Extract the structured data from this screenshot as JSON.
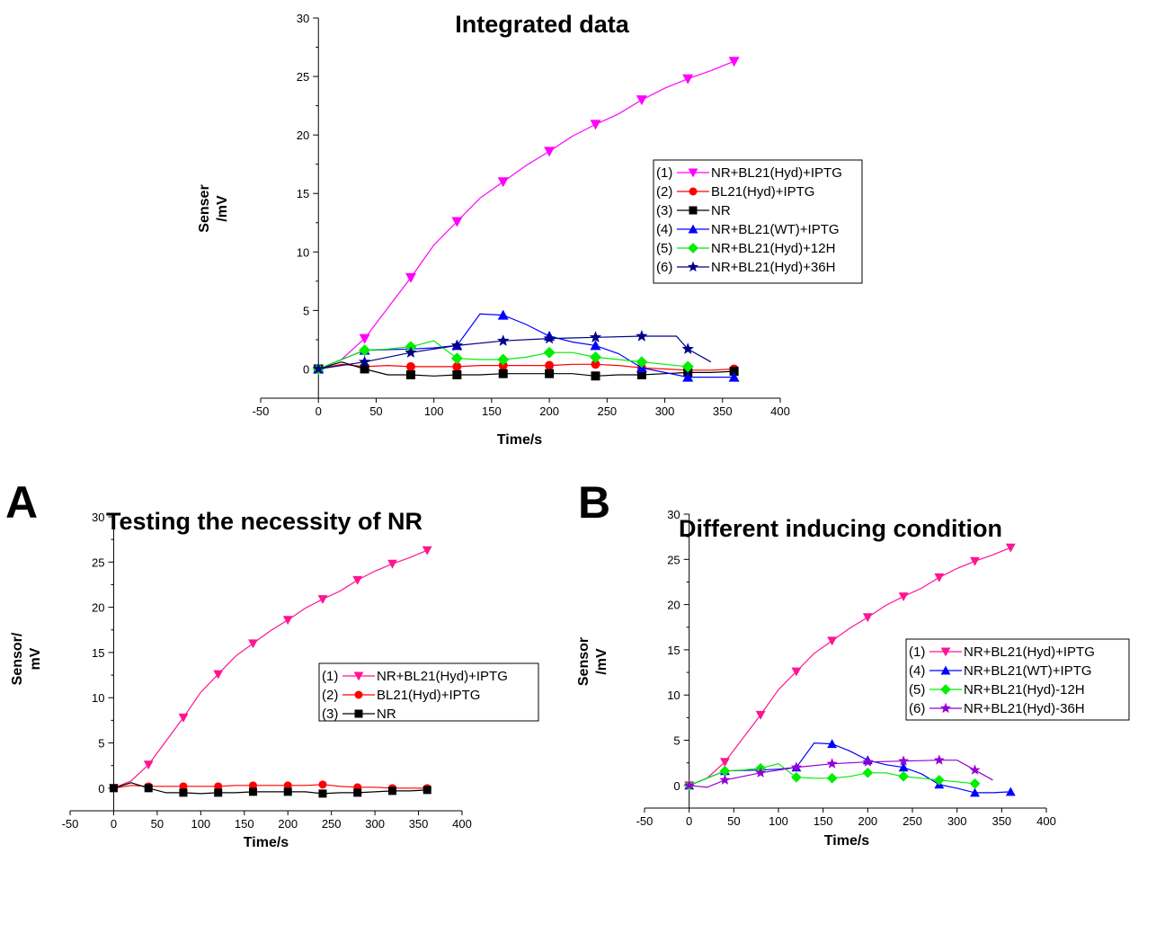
{
  "figure": {
    "panel_labels": [
      "A",
      "B"
    ]
  },
  "colors": {
    "nr_bl21_hyd_iptg": "#ff00ff",
    "nr_bl21_hyd_iptg_panels": "#ff1493",
    "bl21_hyd_iptg": "#ff0000",
    "nr": "#000000",
    "nr_bl21_wt_iptg": "#0000ff",
    "nr_bl21_hyd_12h": "#00ee00",
    "nr_bl21_hyd_36h": "#00008b",
    "nr_bl21_hyd_36h_panelB": "#9400d3"
  },
  "chart_data": [
    {
      "id": "top",
      "type": "line",
      "title": "Integrated data",
      "xlabel": "Time/s",
      "ylabel": [
        "Senser",
        "/mV"
      ],
      "xlim": [
        -50,
        400
      ],
      "ylim": [
        -2.5,
        30
      ],
      "xticks": [
        -50,
        0,
        50,
        100,
        150,
        200,
        250,
        300,
        350,
        400
      ],
      "yticks": [
        0,
        5,
        10,
        15,
        20,
        25,
        30
      ],
      "legend_position": "center-right",
      "series": [
        {
          "name": "NR+BL21(Hyd)+IPTG",
          "tag": "(1)",
          "color": "#ff00ff",
          "marker": "tri-down",
          "line_x": [
            0,
            20,
            40,
            60,
            80,
            100,
            120,
            140,
            160,
            180,
            200,
            220,
            240,
            260,
            280,
            300,
            320,
            340,
            360
          ],
          "line_y": [
            0,
            0.8,
            2.6,
            5.2,
            7.8,
            10.6,
            12.6,
            14.6,
            16,
            17.4,
            18.6,
            19.9,
            20.9,
            21.8,
            23,
            24,
            24.8,
            25.5,
            26.3
          ],
          "x": [
            0,
            40,
            80,
            120,
            160,
            200,
            240,
            280,
            320,
            360
          ],
          "y": [
            0,
            2.6,
            7.8,
            12.6,
            16,
            18.6,
            20.9,
            23,
            24.8,
            26.3
          ]
        },
        {
          "name": "BL21(Hyd)+IPTG",
          "tag": "(2)",
          "color": "#ff0000",
          "marker": "circle",
          "line_x": [
            0,
            20,
            40,
            60,
            80,
            100,
            120,
            140,
            160,
            180,
            200,
            220,
            240,
            260,
            280,
            300,
            320,
            340,
            360
          ],
          "line_y": [
            0,
            0.4,
            0.2,
            0.3,
            0.2,
            0.2,
            0.2,
            0.3,
            0.3,
            0.3,
            0.3,
            0.4,
            0.4,
            0.3,
            0.1,
            0,
            -0.1,
            -0.1,
            0
          ],
          "x": [
            0,
            40,
            80,
            120,
            160,
            200,
            240,
            280,
            320,
            360
          ],
          "y": [
            0,
            0.2,
            0.2,
            0.2,
            0.3,
            0.3,
            0.4,
            0.1,
            -0.1,
            0
          ]
        },
        {
          "name": "NR",
          "tag": "(3)",
          "color": "#000000",
          "marker": "square",
          "line_x": [
            0,
            20,
            40,
            60,
            80,
            100,
            120,
            140,
            160,
            180,
            200,
            220,
            240,
            260,
            280,
            300,
            320,
            340,
            360
          ],
          "line_y": [
            0,
            0.6,
            0,
            -0.5,
            -0.5,
            -0.6,
            -0.5,
            -0.5,
            -0.4,
            -0.4,
            -0.4,
            -0.4,
            -0.6,
            -0.5,
            -0.5,
            -0.4,
            -0.3,
            -0.3,
            -0.2
          ],
          "x": [
            0,
            40,
            80,
            120,
            160,
            200,
            240,
            280,
            320,
            360
          ],
          "y": [
            0,
            0,
            -0.5,
            -0.5,
            -0.4,
            -0.4,
            -0.6,
            -0.5,
            -0.3,
            -0.2
          ]
        },
        {
          "name": "NR+BL21(WT)+IPTG",
          "tag": "(4)",
          "color": "#0000ff",
          "marker": "tri-up",
          "line_x": [
            0,
            40,
            80,
            100,
            120,
            140,
            160,
            180,
            200,
            220,
            240,
            260,
            280,
            300,
            320,
            340,
            360
          ],
          "line_y": [
            0,
            1.6,
            1.7,
            1.8,
            2,
            4.7,
            4.6,
            3.8,
            2.8,
            2.3,
            2,
            1.3,
            0.1,
            -0.3,
            -0.7,
            -0.7,
            -0.7
          ],
          "x": [
            0,
            40,
            120,
            160,
            200,
            240,
            280,
            320,
            360
          ],
          "y": [
            0,
            1.6,
            2,
            4.6,
            2.8,
            2,
            0.1,
            -0.7,
            -0.7
          ]
        },
        {
          "name": "NR+BL21(Hyd)+12H",
          "tag": "(5)",
          "color": "#00ee00",
          "marker": "diamond",
          "line_x": [
            0,
            40,
            60,
            80,
            100,
            120,
            140,
            160,
            180,
            200,
            220,
            240,
            260,
            280,
            300,
            320
          ],
          "line_y": [
            0,
            1.6,
            1.7,
            1.9,
            2.4,
            0.9,
            0.8,
            0.8,
            1,
            1.4,
            1.4,
            1,
            0.8,
            0.6,
            0.4,
            0.2
          ],
          "x": [
            0,
            40,
            80,
            120,
            160,
            200,
            240,
            280,
            320
          ],
          "y": [
            0,
            1.6,
            1.9,
            0.9,
            0.8,
            1.4,
            1,
            0.6,
            0.2
          ]
        },
        {
          "name": "NR+BL21(Hyd)+36H",
          "tag": "(6)",
          "color": "#00008b",
          "marker": "star",
          "line_x": [
            0,
            40,
            80,
            120,
            160,
            200,
            240,
            280,
            310,
            320,
            340
          ],
          "line_y": [
            0,
            0.6,
            1.4,
            2,
            2.4,
            2.6,
            2.7,
            2.8,
            2.8,
            1.7,
            0.6
          ],
          "x": [
            0,
            40,
            80,
            120,
            160,
            200,
            240,
            280,
            320
          ],
          "y": [
            0,
            0.6,
            1.4,
            2,
            2.4,
            2.6,
            2.7,
            2.8,
            1.7
          ]
        }
      ]
    },
    {
      "id": "A",
      "type": "line",
      "title": "Testing the necessity of NR",
      "xlabel": "Time/s",
      "ylabel": [
        "Sensor/",
        "mV"
      ],
      "xlim": [
        -50,
        400
      ],
      "ylim": [
        -2.5,
        30
      ],
      "xticks": [
        -50,
        0,
        50,
        100,
        150,
        200,
        250,
        300,
        350,
        400
      ],
      "yticks": [
        0,
        5,
        10,
        15,
        20,
        25,
        30
      ],
      "legend_position": "center-right",
      "series": [
        {
          "name": "NR+BL21(Hyd)+IPTG",
          "tag": "(1)",
          "color": "#ff1493",
          "marker": "tri-down",
          "line_x": [
            0,
            20,
            40,
            60,
            80,
            100,
            120,
            140,
            160,
            180,
            200,
            220,
            240,
            260,
            280,
            300,
            320,
            340,
            360
          ],
          "line_y": [
            0,
            0.8,
            2.6,
            5.2,
            7.8,
            10.6,
            12.6,
            14.6,
            16,
            17.4,
            18.6,
            19.9,
            20.9,
            21.8,
            23,
            24,
            24.8,
            25.5,
            26.3
          ],
          "x": [
            0,
            40,
            80,
            120,
            160,
            200,
            240,
            280,
            320,
            360
          ],
          "y": [
            0,
            2.6,
            7.8,
            12.6,
            16,
            18.6,
            20.9,
            23,
            24.8,
            26.3
          ]
        },
        {
          "name": "BL21(Hyd)+IPTG",
          "tag": "(2)",
          "color": "#ff0000",
          "marker": "circle",
          "line_x": [
            0,
            20,
            40,
            60,
            80,
            100,
            120,
            140,
            160,
            180,
            200,
            220,
            240,
            260,
            280,
            300,
            320,
            340,
            360
          ],
          "line_y": [
            0,
            0.3,
            0.2,
            0.2,
            0.2,
            0.2,
            0.2,
            0.3,
            0.3,
            0.3,
            0.3,
            0.3,
            0.4,
            0.2,
            0.1,
            0.1,
            0,
            0,
            0
          ],
          "x": [
            0,
            40,
            80,
            120,
            160,
            200,
            240,
            280,
            320,
            360
          ],
          "y": [
            0,
            0.2,
            0.2,
            0.2,
            0.3,
            0.3,
            0.4,
            0.1,
            0,
            0
          ]
        },
        {
          "name": "NR",
          "tag": "(3)",
          "color": "#000000",
          "marker": "square",
          "line_x": [
            0,
            20,
            40,
            60,
            80,
            100,
            120,
            140,
            160,
            180,
            200,
            220,
            240,
            260,
            280,
            300,
            320,
            340,
            360
          ],
          "line_y": [
            0,
            0.6,
            0,
            -0.5,
            -0.5,
            -0.6,
            -0.5,
            -0.5,
            -0.4,
            -0.4,
            -0.4,
            -0.4,
            -0.6,
            -0.5,
            -0.5,
            -0.4,
            -0.3,
            -0.3,
            -0.2
          ],
          "x": [
            0,
            40,
            80,
            120,
            160,
            200,
            240,
            280,
            320,
            360
          ],
          "y": [
            0,
            0,
            -0.5,
            -0.5,
            -0.4,
            -0.4,
            -0.6,
            -0.5,
            -0.3,
            -0.2
          ]
        }
      ]
    },
    {
      "id": "B",
      "type": "line",
      "title": "Different inducing condition",
      "xlabel": "Time/s",
      "ylabel": [
        "Sensor",
        "/mV"
      ],
      "xlim": [
        -50,
        400
      ],
      "ylim": [
        -2.5,
        30
      ],
      "xticks": [
        -50,
        0,
        50,
        100,
        150,
        200,
        250,
        300,
        350,
        400
      ],
      "yticks": [
        0,
        5,
        10,
        15,
        20,
        25,
        30
      ],
      "legend_position": "center-right",
      "series": [
        {
          "name": "NR+BL21(Hyd)+IPTG",
          "tag": "(1)",
          "color": "#ff1493",
          "marker": "tri-down",
          "line_x": [
            0,
            20,
            40,
            60,
            80,
            100,
            120,
            140,
            160,
            180,
            200,
            220,
            240,
            260,
            280,
            300,
            320,
            340,
            360
          ],
          "line_y": [
            0,
            0.8,
            2.6,
            5.2,
            7.8,
            10.6,
            12.6,
            14.6,
            16,
            17.4,
            18.6,
            19.9,
            20.9,
            21.8,
            23,
            24,
            24.8,
            25.5,
            26.3
          ],
          "x": [
            0,
            40,
            80,
            120,
            160,
            200,
            240,
            280,
            320,
            360
          ],
          "y": [
            0,
            2.6,
            7.8,
            12.6,
            16,
            18.6,
            20.9,
            23,
            24.8,
            26.3
          ]
        },
        {
          "name": "NR+BL21(WT)+IPTG",
          "tag": "(4)",
          "color": "#0000ff",
          "marker": "tri-up",
          "line_x": [
            0,
            40,
            80,
            100,
            120,
            140,
            160,
            180,
            200,
            220,
            240,
            260,
            280,
            300,
            320,
            340,
            360
          ],
          "line_y": [
            0,
            1.6,
            1.7,
            1.8,
            2,
            4.7,
            4.6,
            3.8,
            2.8,
            2.3,
            2,
            1.3,
            0.1,
            -0.3,
            -0.8,
            -0.8,
            -0.7
          ],
          "x": [
            0,
            40,
            120,
            160,
            200,
            240,
            280,
            320,
            360
          ],
          "y": [
            0,
            1.6,
            2,
            4.6,
            2.8,
            2,
            0.1,
            -0.8,
            -0.7
          ]
        },
        {
          "name": "NR+BL21(Hyd)-12H",
          "tag": "(5)",
          "color": "#00ee00",
          "marker": "diamond",
          "line_x": [
            0,
            40,
            60,
            80,
            100,
            120,
            140,
            160,
            180,
            200,
            220,
            240,
            260,
            280,
            300,
            320
          ],
          "line_y": [
            0,
            1.6,
            1.7,
            1.9,
            2.4,
            0.9,
            0.8,
            0.8,
            1,
            1.4,
            1.4,
            1,
            0.8,
            0.6,
            0.4,
            0.2
          ],
          "x": [
            0,
            40,
            80,
            120,
            160,
            200,
            240,
            280,
            320
          ],
          "y": [
            0,
            1.6,
            1.9,
            0.9,
            0.8,
            1.4,
            1,
            0.6,
            0.2
          ]
        },
        {
          "name": "NR+BL21(Hyd)-36H",
          "tag": "(6)",
          "color": "#9400d3",
          "marker": "star",
          "line_x": [
            0,
            20,
            40,
            80,
            120,
            160,
            200,
            240,
            280,
            300,
            320,
            340
          ],
          "line_y": [
            0,
            -0.2,
            0.6,
            1.4,
            2,
            2.4,
            2.6,
            2.7,
            2.8,
            2.8,
            1.7,
            0.6
          ],
          "x": [
            0,
            40,
            80,
            120,
            160,
            200,
            240,
            280,
            320
          ],
          "y": [
            0,
            0.6,
            1.4,
            2,
            2.4,
            2.6,
            2.7,
            2.8,
            1.7
          ]
        }
      ]
    }
  ]
}
